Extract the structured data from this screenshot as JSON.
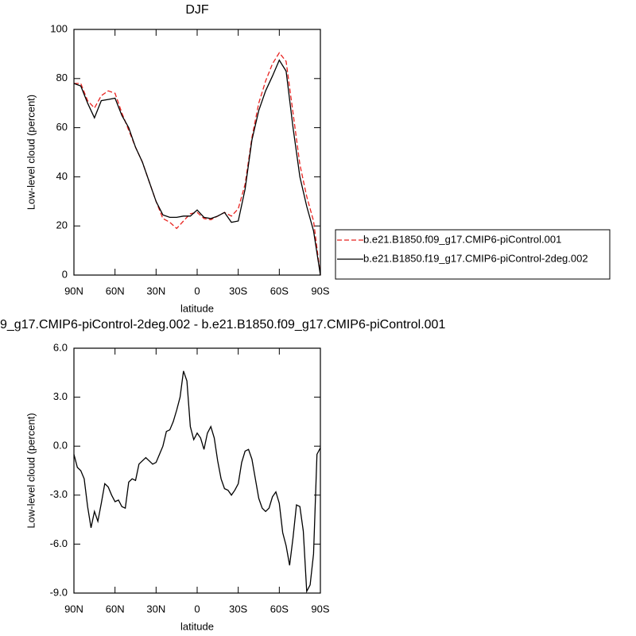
{
  "chart_data": [
    {
      "type": "line",
      "title": "DJF",
      "x_label": "latitude",
      "y_label": "Low-level cloud (percent)",
      "x": [
        90,
        85,
        80,
        75,
        70,
        65,
        60,
        55,
        50,
        45,
        40,
        35,
        30,
        25,
        20,
        15,
        10,
        5,
        0,
        -5,
        -10,
        -15,
        -20,
        -25,
        -30,
        -35,
        -40,
        -45,
        -50,
        -55,
        -60,
        -65,
        -70,
        -75,
        -80,
        -85,
        -90
      ],
      "series": [
        {
          "name": "b.e21.B1850.f09_g17.CMIP6-piControl.001",
          "color": "#e8221f",
          "dashed": true,
          "values": [
            78,
            78,
            71,
            68,
            73,
            75,
            74,
            66,
            59,
            52,
            46,
            38,
            30,
            23,
            21.5,
            19,
            22,
            25,
            25.5,
            23,
            22.5,
            24,
            25.5,
            24,
            27,
            37,
            56,
            70,
            79,
            86,
            90.5,
            87,
            66,
            45,
            32,
            22,
            0
          ]
        },
        {
          "name": "b.e21.B1850.f19_g17.CMIP6-piControl-2deg.002",
          "color": "#000000",
          "dashed": false,
          "values": [
            78,
            77,
            70,
            64,
            71,
            71.5,
            72,
            65,
            60,
            52,
            46,
            38,
            30,
            24.5,
            23.5,
            23.5,
            24,
            24,
            26.5,
            23.5,
            23,
            24,
            25.5,
            21.5,
            22,
            35,
            55,
            67,
            75,
            81,
            87.5,
            83,
            60,
            40,
            28,
            18,
            0
          ]
        }
      ],
      "xlim": [
        90,
        -90
      ],
      "xticks": [
        {
          "value": 90,
          "label": "90N"
        },
        {
          "value": 60,
          "label": "60N"
        },
        {
          "value": 30,
          "label": "30N"
        },
        0,
        {
          "value": -30,
          "label": "30S"
        },
        {
          "value": -60,
          "label": "60S"
        },
        {
          "value": -90,
          "label": "90S"
        }
      ],
      "ylim": [
        0,
        100
      ],
      "yticks": [
        0,
        20,
        40,
        60,
        80,
        100
      ],
      "legend": "right"
    },
    {
      "type": "line",
      "title": "9_g17.CMIP6-piControl-2deg.002 - b.e21.B1850.f09_g17.CMIP6-piControl.001",
      "x_label": "latitude",
      "y_label": "Low-level cloud (percent)",
      "x": [
        90,
        87.5,
        85,
        82.5,
        80,
        77.5,
        75,
        72.5,
        70,
        67.5,
        65,
        62.5,
        60,
        57.5,
        55,
        52.5,
        50,
        47.5,
        45,
        42.5,
        40,
        37.5,
        35,
        32.5,
        30,
        27.5,
        25,
        22.5,
        20,
        17.5,
        15,
        12.5,
        10,
        7.5,
        5,
        2.5,
        0,
        -2.5,
        -5,
        -7.5,
        -10,
        -12.5,
        -15,
        -17.5,
        -20,
        -22.5,
        -25,
        -27.5,
        -30,
        -32.5,
        -35,
        -37.5,
        -40,
        -42.5,
        -45,
        -47.5,
        -50,
        -52.5,
        -55,
        -57.5,
        -60,
        -62.5,
        -65,
        -67.5,
        -70,
        -72.5,
        -75,
        -77.5,
        -80,
        -82.5,
        -85,
        -87.5,
        -90
      ],
      "values": [
        -0.5,
        -1.3,
        -1.5,
        -2.0,
        -3.7,
        -5.0,
        -4.0,
        -4.6,
        -3.5,
        -2.3,
        -2.5,
        -3.0,
        -3.4,
        -3.3,
        -3.7,
        -3.8,
        -2.2,
        -2.0,
        -2.1,
        -1.1,
        -0.9,
        -0.7,
        -0.9,
        -1.1,
        -1.0,
        -0.5,
        0.0,
        0.9,
        1.0,
        1.5,
        2.2,
        3.0,
        4.6,
        4.0,
        1.2,
        0.4,
        0.8,
        0.5,
        -0.2,
        0.8,
        1.2,
        0.5,
        -0.9,
        -2.0,
        -2.6,
        -2.7,
        -3.0,
        -2.7,
        -2.3,
        -1.0,
        -0.3,
        -0.2,
        -0.8,
        -2.0,
        -3.2,
        -3.8,
        -4.0,
        -3.8,
        -3.1,
        -2.8,
        -3.5,
        -5.3,
        -6.1,
        -7.3,
        -5.6,
        -3.6,
        -3.7,
        -5.2,
        -8.9,
        -8.5,
        -6.6,
        -0.5,
        -0.1
      ],
      "color": "#000000",
      "xlim": [
        90,
        -90
      ],
      "xticks": [
        {
          "value": 90,
          "label": "90N"
        },
        {
          "value": 60,
          "label": "60N"
        },
        {
          "value": 30,
          "label": "30N"
        },
        0,
        {
          "value": -30,
          "label": "30S"
        },
        {
          "value": -60,
          "label": "60S"
        },
        {
          "value": -90,
          "label": "90S"
        }
      ],
      "ylim": [
        -9,
        6
      ],
      "yticks": [
        {
          "value": -9,
          "label": "-9.0"
        },
        {
          "value": -6,
          "label": "-6.0"
        },
        {
          "value": -3,
          "label": "-3.0"
        },
        {
          "value": 0,
          "label": "0.0"
        },
        {
          "value": 3,
          "label": "3.0"
        },
        {
          "value": 6,
          "label": "6.0"
        }
      ]
    }
  ]
}
